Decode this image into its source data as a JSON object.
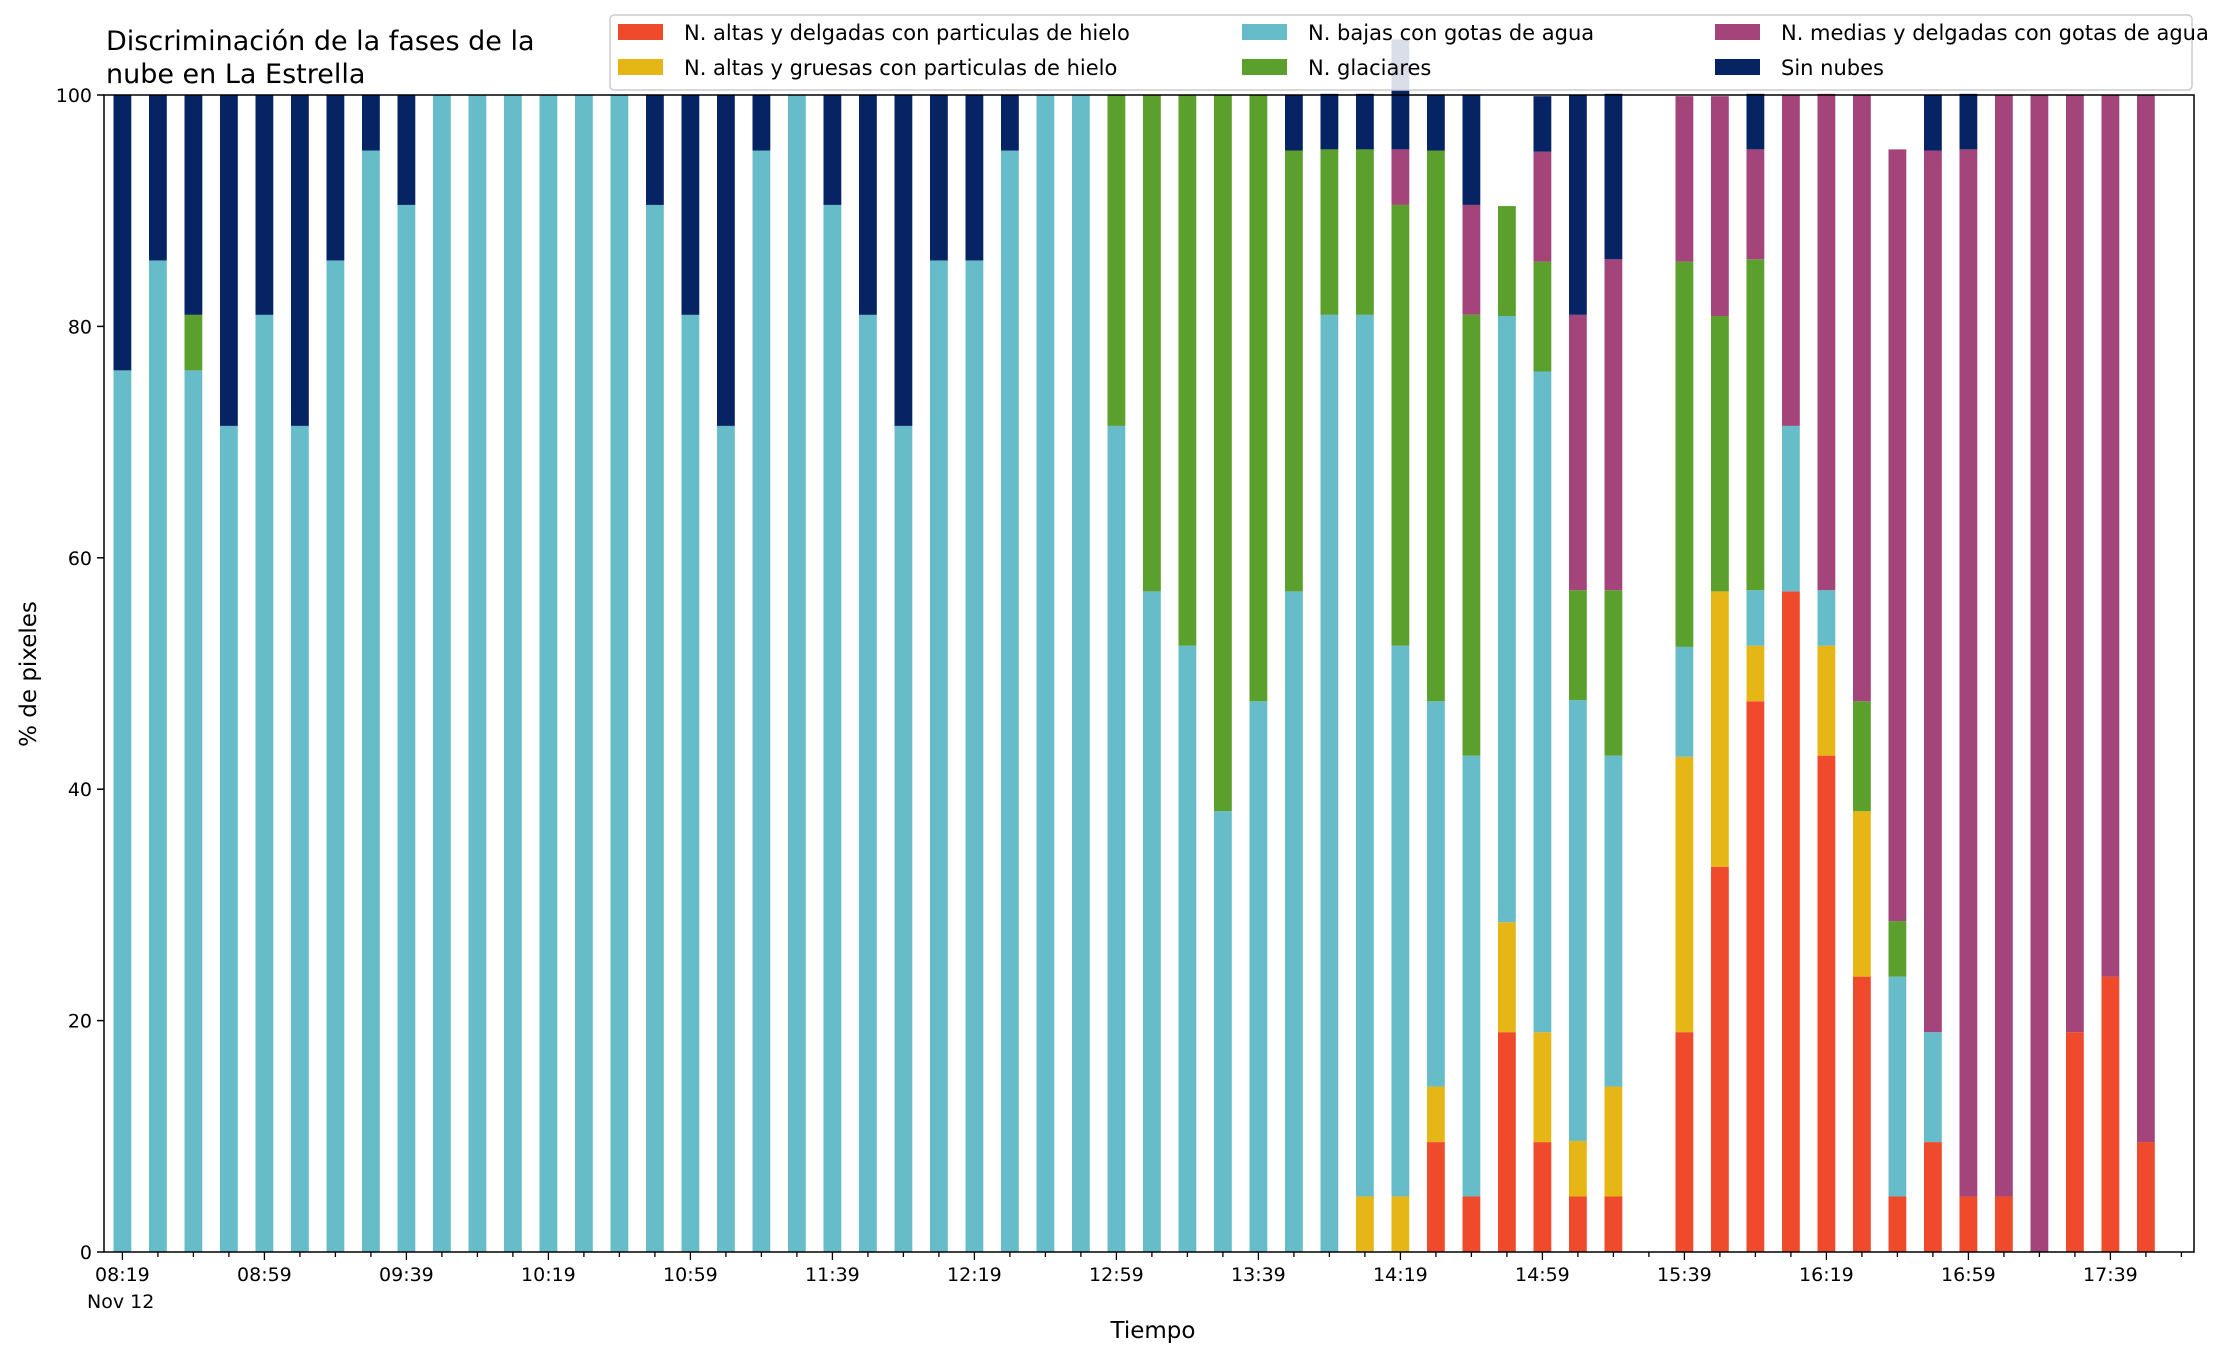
{
  "chart_data": {
    "type": "bar",
    "stacked": true,
    "title_lines": [
      "Discriminación de la fases de la",
      "nube en La Estrella"
    ],
    "xlabel": "Tiempo",
    "ylabel": "% de pixeles",
    "ylim": [
      0,
      100
    ],
    "yticks": [
      0,
      20,
      40,
      60,
      80,
      100
    ],
    "x_date_note": "Nov 12",
    "x_interval_minutes": 10,
    "x_first": "08:19",
    "x_last": "17:49",
    "x_tick_labels": [
      "08:19",
      "08:59",
      "09:39",
      "10:19",
      "10:59",
      "11:39",
      "12:19",
      "12:59",
      "13:39",
      "14:19",
      "14:59",
      "15:39",
      "16:19",
      "16:59",
      "17:39"
    ],
    "legend_placement": "top-right",
    "grid": false,
    "x": [
      "08:19",
      "08:29",
      "08:39",
      "08:49",
      "08:59",
      "09:09",
      "09:19",
      "09:29",
      "09:39",
      "09:49",
      "09:59",
      "10:09",
      "10:19",
      "10:29",
      "10:39",
      "10:49",
      "10:59",
      "11:09",
      "11:19",
      "11:29",
      "11:39",
      "11:49",
      "11:59",
      "12:09",
      "12:19",
      "12:29",
      "12:39",
      "12:49",
      "12:59",
      "13:09",
      "13:19",
      "13:29",
      "13:39",
      "13:49",
      "13:59",
      "14:09",
      "14:19",
      "14:29",
      "14:39",
      "14:49",
      "14:59",
      "15:09",
      "15:19",
      "15:29",
      "15:39",
      "15:49",
      "15:59",
      "16:09",
      "16:19",
      "16:29",
      "16:39",
      "16:49",
      "16:59",
      "17:09",
      "17:19",
      "17:29",
      "17:39",
      "17:49"
    ],
    "series": [
      {
        "name": "N. altas y delgadas con particulas de hielo",
        "color": "#ee4a2b",
        "values": [
          0,
          0,
          0,
          0,
          0,
          0,
          0,
          0,
          0,
          0,
          0,
          0,
          0,
          0,
          0,
          0,
          0,
          0,
          0,
          0,
          0,
          0,
          0,
          0,
          0,
          0,
          0,
          0,
          0,
          0,
          0,
          0,
          0,
          0,
          0,
          0,
          0,
          9.5,
          4.8,
          19.0,
          9.5,
          4.8,
          4.8,
          0,
          19.0,
          33.3,
          47.6,
          57.1,
          42.9,
          23.8,
          4.8,
          9.5,
          4.8,
          4.8,
          0,
          19.0,
          23.8,
          9.5
        ]
      },
      {
        "name": "N. altas y gruesas con particulas de hielo",
        "color": "#e5b616",
        "values": [
          0,
          0,
          0,
          0,
          0,
          0,
          0,
          0,
          0,
          0,
          0,
          0,
          0,
          0,
          0,
          0,
          0,
          0,
          0,
          0,
          0,
          0,
          0,
          0,
          0,
          0,
          0,
          0,
          0,
          0,
          0,
          0,
          0,
          0,
          0,
          4.8,
          4.8,
          4.8,
          0,
          9.5,
          9.5,
          4.8,
          9.5,
          0,
          23.8,
          23.8,
          4.8,
          0,
          9.5,
          14.3,
          0,
          0,
          0,
          0,
          0,
          0,
          0,
          0
        ]
      },
      {
        "name": "N. bajas con gotas de agua",
        "color": "#67bcc9",
        "values": [
          76.2,
          85.7,
          76.2,
          71.4,
          81.0,
          71.4,
          85.7,
          95.2,
          90.5,
          100,
          100,
          100,
          100,
          100,
          100,
          90.5,
          81.0,
          71.4,
          95.2,
          100,
          90.5,
          81.0,
          71.4,
          85.7,
          85.7,
          95.2,
          100,
          100,
          71.4,
          57.1,
          52.4,
          38.1,
          47.6,
          57.1,
          81.0,
          76.2,
          47.6,
          33.3,
          38.1,
          52.4,
          57.1,
          38.1,
          28.6,
          0,
          9.5,
          0,
          4.8,
          14.3,
          4.8,
          0,
          19.0,
          9.5,
          0,
          0,
          0,
          0,
          0,
          0
        ]
      },
      {
        "name": "N. glaciares",
        "color": "#5b9f2d",
        "values": [
          0,
          0,
          4.8,
          0,
          0,
          0,
          0,
          0,
          0,
          0,
          0,
          0,
          0,
          0,
          0,
          0,
          0,
          0,
          0,
          0,
          0,
          0,
          0,
          0,
          0,
          0,
          0,
          0,
          28.6,
          42.9,
          47.6,
          61.9,
          52.4,
          38.1,
          14.3,
          14.3,
          38.1,
          47.6,
          38.1,
          9.5,
          9.5,
          9.5,
          14.3,
          0,
          33.3,
          23.8,
          28.6,
          0,
          0,
          9.5,
          4.8,
          0,
          0,
          0,
          0,
          0,
          0,
          0
        ]
      },
      {
        "name": "N. medias y delgadas con gotas de agua",
        "color": "#a3457b",
        "values": [
          0,
          0,
          0,
          0,
          0,
          0,
          0,
          0,
          0,
          0,
          0,
          0,
          0,
          0,
          0,
          0,
          0,
          0,
          0,
          0,
          0,
          0,
          0,
          0,
          0,
          0,
          0,
          0,
          0,
          0,
          0,
          0,
          0,
          0,
          0,
          0,
          4.8,
          0,
          9.5,
          0,
          9.5,
          23.8,
          28.6,
          0,
          14.3,
          19.0,
          9.5,
          28.6,
          42.9,
          52.4,
          66.7,
          76.2,
          90.5,
          95.2,
          100,
          81.0,
          76.2,
          90.5
        ]
      },
      {
        "name": "Sin nubes",
        "color": "#062363",
        "values": [
          23.8,
          14.3,
          19.0,
          28.6,
          19.0,
          28.6,
          14.3,
          4.8,
          9.5,
          0,
          0,
          0,
          0,
          0,
          0,
          9.5,
          19.0,
          28.6,
          4.8,
          0,
          9.5,
          19.0,
          28.6,
          14.3,
          14.3,
          4.8,
          0,
          0,
          0,
          0,
          0,
          0,
          0,
          4.8,
          4.8,
          4.8,
          9.5,
          4.8,
          9.5,
          0,
          4.8,
          19.0,
          14.3,
          0,
          0,
          0,
          4.8,
          0,
          0,
          0,
          0,
          4.8,
          4.8,
          0,
          0,
          0,
          0,
          0
        ]
      }
    ]
  }
}
